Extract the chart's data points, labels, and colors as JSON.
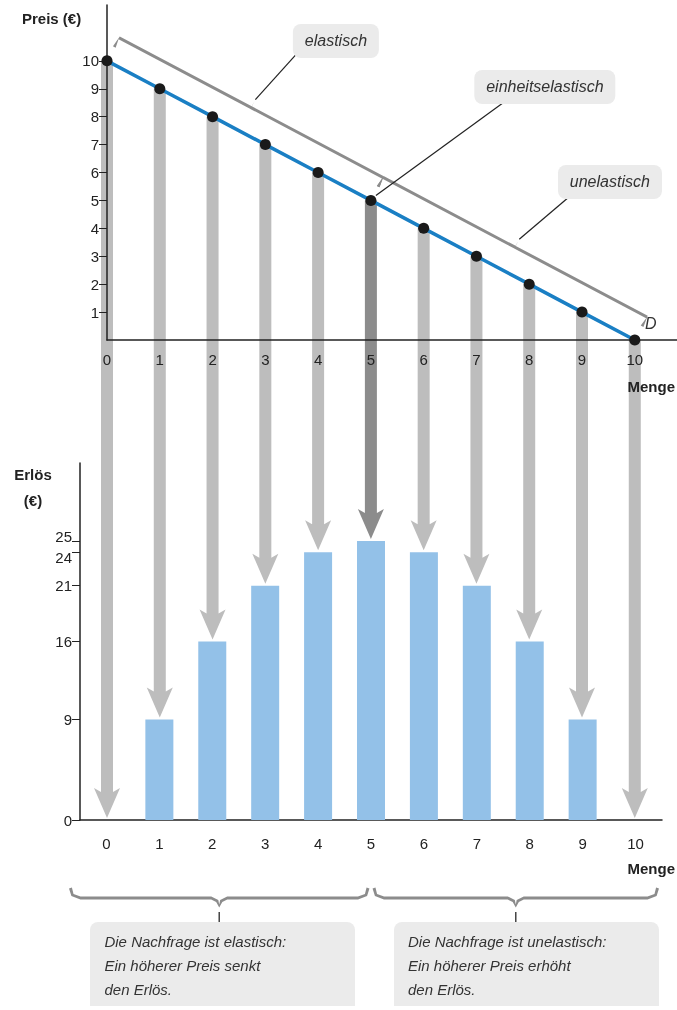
{
  "chart_data": [
    {
      "type": "line",
      "xlabel": "Menge",
      "ylabel": "Preis (€)",
      "x": [
        0,
        1,
        2,
        3,
        4,
        5,
        6,
        7,
        8,
        9,
        10
      ],
      "series": [
        {
          "color": "#1a7fc4",
          "values": [
            10,
            9,
            8,
            7,
            6,
            5,
            4,
            3,
            2,
            1,
            0
          ]
        }
      ],
      "xlim": [
        0,
        10.8
      ],
      "xticks": [
        0,
        1,
        2,
        3,
        4,
        5,
        6,
        7,
        8,
        9,
        10
      ],
      "ylim": [
        0,
        12
      ],
      "yticks": [
        1,
        2,
        3,
        4,
        5,
        6,
        7,
        8,
        9,
        10
      ],
      "marker": "circle",
      "annotations": [
        "elastisch",
        {
          "text": "einheitselastisch",
          "x": 5,
          "y": 5
        },
        "unelastisch",
        {
          "text": "D",
          "x": 10,
          "y": 0
        }
      ]
    },
    {
      "type": "bar",
      "xlabel": "Menge",
      "ylabel": "Erlös (€)",
      "categories": [
        "0",
        "1",
        "2",
        "3",
        "4",
        "5",
        "6",
        "7",
        "8",
        "9",
        "10"
      ],
      "series": [
        {
          "color": "#93c1e8",
          "values": [
            0,
            9,
            16,
            21,
            24,
            25,
            24,
            21,
            16,
            9,
            0
          ]
        }
      ],
      "ylim": [
        0,
        32
      ],
      "yticks": [
        0,
        9,
        16,
        21,
        24,
        25
      ],
      "annotations": [
        "Die Nachfrage ist elastisch:\nEin höherer Preis senkt\nden Erlös.",
        "Die Nachfrage ist unelastisch:\nEin höherer Preis erhöht\nden Erlös."
      ]
    }
  ]
}
